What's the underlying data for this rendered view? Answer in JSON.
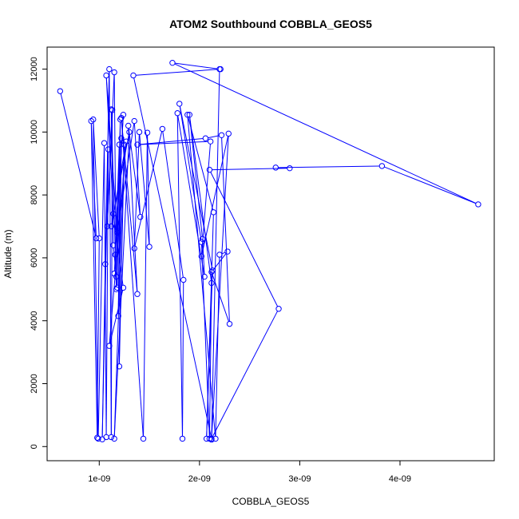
{
  "chart_data": {
    "type": "line",
    "title": "ATOM2 Southbound COBBLA_GEOS5",
    "xlabel": "COBBLA_GEOS5",
    "ylabel": "Altitude (m)",
    "xlim": [
      4.8e-10,
      4.94e-09
    ],
    "ylim": [
      -450,
      12700
    ],
    "xticks": [
      1e-09,
      2e-09,
      3e-09,
      4e-09
    ],
    "xtick_labels": [
      "1e-09",
      "2e-09",
      "3e-09",
      "4e-09"
    ],
    "yticks": [
      0,
      2000,
      4000,
      6000,
      8000,
      10000,
      12000
    ],
    "ytick_labels": [
      "0",
      "2000",
      "4000",
      "6000",
      "8000",
      "10000",
      "12000"
    ],
    "grid": false,
    "series": [
      {
        "color": "#0000ff",
        "marker": "open-circle",
        "points": [
          [
            6.1e-10,
            11300
          ],
          [
            9.7e-10,
            6620
          ],
          [
            9.2e-10,
            10350
          ],
          [
            9.8e-10,
            280
          ],
          [
            1e-09,
            6620
          ],
          [
            9.4e-10,
            10400
          ],
          [
            9.9e-10,
            250
          ],
          [
            1.05e-09,
            9650
          ],
          [
            1.07e-09,
            300
          ],
          [
            1.09e-09,
            9450
          ],
          [
            1.03e-09,
            230
          ],
          [
            1.06e-09,
            5800
          ],
          [
            1.1e-09,
            12000
          ],
          [
            1.12e-09,
            300
          ],
          [
            1.13e-09,
            10700
          ],
          [
            1.08e-09,
            7000
          ],
          [
            1.15e-09,
            11900
          ],
          [
            1.17e-09,
            5000
          ],
          [
            1.12e-09,
            10720
          ],
          [
            1.14e-09,
            6400
          ],
          [
            1.18e-09,
            5050
          ],
          [
            1.2e-09,
            9600
          ],
          [
            1.16e-09,
            6100
          ],
          [
            1.24e-09,
            10550
          ],
          [
            1.15e-09,
            5500
          ],
          [
            1.17e-09,
            5400
          ],
          [
            1.21e-09,
            10400
          ],
          [
            1.19e-09,
            4150
          ],
          [
            1.22e-09,
            9800
          ],
          [
            1.2e-09,
            2550
          ],
          [
            1.25e-09,
            9600
          ],
          [
            1.15e-09,
            250
          ],
          [
            1.3e-09,
            10000
          ],
          [
            1.12e-09,
            7000
          ],
          [
            1.27e-09,
            9700
          ],
          [
            1.1e-09,
            3200
          ],
          [
            1.24e-09,
            5050
          ],
          [
            1.14e-09,
            7400
          ],
          [
            1.07e-09,
            11800
          ],
          [
            1.18e-09,
            6800
          ],
          [
            1.35e-09,
            10350
          ],
          [
            1.41e-09,
            7300
          ],
          [
            1.29e-09,
            10200
          ],
          [
            1.38e-09,
            4850
          ],
          [
            1.22e-09,
            10450
          ],
          [
            1.44e-09,
            250
          ],
          [
            1.48e-09,
            9980
          ],
          [
            1.5e-09,
            6350
          ],
          [
            1.4e-09,
            10000
          ],
          [
            1.35e-09,
            6300
          ],
          [
            1.63e-09,
            10100
          ],
          [
            1.84e-09,
            5300
          ],
          [
            1.83e-09,
            250
          ],
          [
            1.78e-09,
            10600
          ],
          [
            2.05e-09,
            5400
          ],
          [
            2.03e-09,
            6600
          ],
          [
            1.9e-09,
            10550
          ],
          [
            2.12e-09,
            5200
          ],
          [
            2.1e-09,
            250
          ],
          [
            2.02e-09,
            6500
          ],
          [
            1.8e-09,
            10900
          ],
          [
            2.13e-09,
            5600
          ],
          [
            2.07e-09,
            250
          ],
          [
            2.14e-09,
            7450
          ],
          [
            1.88e-09,
            10550
          ],
          [
            2.16e-09,
            250
          ],
          [
            2.2e-09,
            6100
          ],
          [
            2.28e-09,
            6200
          ],
          [
            2.12e-09,
            5550
          ],
          [
            2.3e-09,
            3900
          ],
          [
            2.22e-09,
            9900
          ],
          [
            2.06e-09,
            9800
          ],
          [
            1.38e-09,
            9600
          ],
          [
            2.11e-09,
            9700
          ],
          [
            2.02e-09,
            6050
          ],
          [
            2.29e-09,
            9950
          ],
          [
            2.12e-09,
            220
          ],
          [
            2.2e-09,
            12000
          ],
          [
            1.73e-09,
            12200
          ],
          [
            4.78e-09,
            7700
          ],
          [
            3.82e-09,
            8920
          ],
          [
            2.76e-09,
            8870
          ],
          [
            2.9e-09,
            8850
          ],
          [
            2.1e-09,
            8800
          ],
          [
            2.79e-09,
            4380
          ],
          [
            2.12e-09,
            250
          ],
          [
            1.34e-09,
            11800
          ],
          [
            2.21e-09,
            12000
          ]
        ]
      }
    ]
  }
}
